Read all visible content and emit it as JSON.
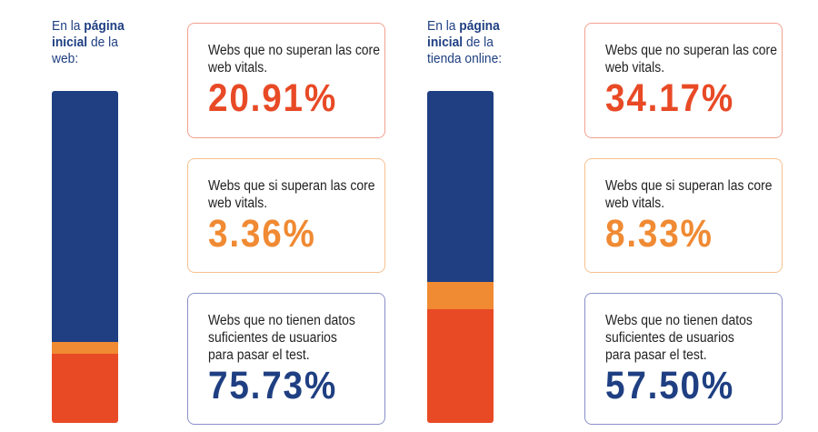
{
  "colors": {
    "fail": "#e84a26",
    "pass": "#f08a33",
    "nodata": "#1f3f82"
  },
  "chart_data": {
    "type": "bar",
    "stacked": true,
    "categories": [
      "En la página inicial de la web",
      "En la página inicial de la tienda online"
    ],
    "series": [
      {
        "name": "Webs que no tienen datos suficientes de usuarios para pasar el test.",
        "values": [
          75.73,
          57.5
        ]
      },
      {
        "name": "Webs que si superan las core web vitals.",
        "values": [
          3.36,
          8.33
        ]
      },
      {
        "name": "Webs que no superan las core web vitals.",
        "values": [
          20.91,
          34.17
        ]
      }
    ]
  },
  "panels": [
    {
      "label_pre": "En la ",
      "label_bold1": "página",
      "label_bold2": "inicial",
      "label_post": " de la",
      "label_tail": "web:",
      "boxes": [
        {
          "text": [
            "Webs que no superan las core",
            "web vitals."
          ],
          "value": "20.91%"
        },
        {
          "text": [
            "Webs que si superan las core",
            "web vitals."
          ],
          "value": "3.36%"
        },
        {
          "text": [
            "Webs que no tienen datos",
            "suficientes de usuarios",
            "para pasar el test."
          ],
          "value": "75.73%"
        }
      ]
    },
    {
      "label_pre": "En la ",
      "label_bold1": "página",
      "label_bold2": "inicial",
      "label_post": " de la",
      "label_tail": "tienda online:",
      "boxes": [
        {
          "text": [
            "Webs que no superan las core",
            "web vitals."
          ],
          "value": "34.17%"
        },
        {
          "text": [
            "Webs que si superan las core",
            "web vitals."
          ],
          "value": "8.33%"
        },
        {
          "text": [
            "Webs que no tienen datos",
            "suficientes de usuarios",
            "para pasar el test."
          ],
          "value": "57.50%"
        }
      ]
    }
  ]
}
